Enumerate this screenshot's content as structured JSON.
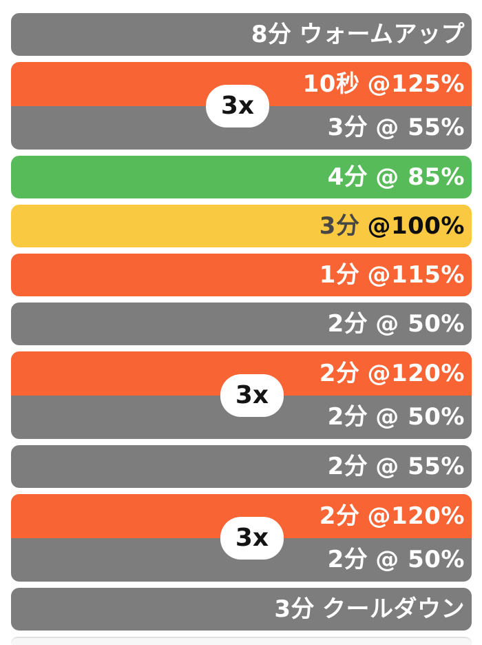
{
  "colors": {
    "gray": "#7d7d7d",
    "orange": "#f96434",
    "green": "#58bb59",
    "yellow": "#f9c942",
    "badge_bg": "#ffffff",
    "badge_text": "#141414",
    "text_light": "#ffffff",
    "text_dark_time": "#474747",
    "text_dark_power": "#0e0e0e",
    "peek_fill": "#f7f7f7",
    "peek_edge": "#e0e0e0"
  },
  "workout": {
    "segments": [
      {
        "kind": "single",
        "zone": "gray",
        "time": "8分",
        "desc": "ウォームアップ"
      },
      {
        "kind": "repeat",
        "count": "3x",
        "top": {
          "zone": "orange",
          "time": "10秒",
          "desc": "@125%"
        },
        "bottom": {
          "zone": "gray",
          "time": "3分",
          "desc": "@ 55%"
        }
      },
      {
        "kind": "single",
        "zone": "green",
        "time": "4分",
        "desc": "@ 85%"
      },
      {
        "kind": "single",
        "zone": "yellow",
        "time": "3分",
        "desc": "@100%"
      },
      {
        "kind": "single",
        "zone": "orange",
        "time": "1分",
        "desc": "@115%"
      },
      {
        "kind": "single",
        "zone": "gray",
        "time": "2分",
        "desc": "@ 50%"
      },
      {
        "kind": "repeat",
        "count": "3x",
        "top": {
          "zone": "orange",
          "time": "2分",
          "desc": "@120%"
        },
        "bottom": {
          "zone": "gray",
          "time": "2分",
          "desc": "@ 50%"
        }
      },
      {
        "kind": "single",
        "zone": "gray",
        "time": "2分",
        "desc": "@ 55%"
      },
      {
        "kind": "repeat",
        "count": "3x",
        "top": {
          "zone": "orange",
          "time": "2分",
          "desc": "@120%"
        },
        "bottom": {
          "zone": "gray",
          "time": "2分",
          "desc": "@ 50%"
        }
      },
      {
        "kind": "single",
        "zone": "gray",
        "time": "3分",
        "desc": "クールダウン"
      }
    ]
  }
}
